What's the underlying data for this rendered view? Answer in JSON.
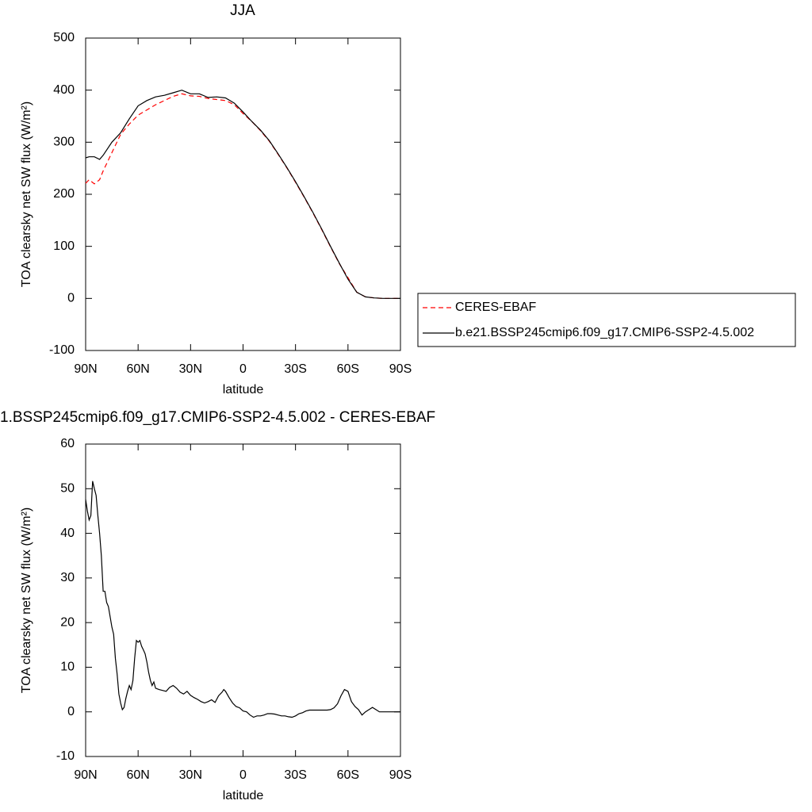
{
  "chart_data": [
    {
      "type": "line",
      "title": "JJA",
      "xlabel": "latitude",
      "ylabel": "TOA clearsky net SW flux (W/m²)",
      "x": [
        90,
        88,
        85,
        82,
        80,
        75,
        70,
        65,
        60,
        55,
        50,
        45,
        40,
        35,
        30,
        25,
        20,
        15,
        10,
        5,
        0,
        -5,
        -10,
        -15,
        -20,
        -25,
        -30,
        -35,
        -40,
        -45,
        -50,
        -55,
        -60,
        -65,
        -70,
        -75,
        -80,
        -85,
        -90
      ],
      "series": [
        {
          "name": "CERES-EBAF",
          "color": "#ff0000",
          "dashed": true,
          "values": [
            221,
            228,
            220,
            228,
            245,
            280,
            315,
            335,
            352,
            362,
            372,
            380,
            388,
            393,
            389,
            388,
            384,
            382,
            380,
            372,
            355,
            340,
            322,
            302,
            277,
            251,
            223,
            194,
            164,
            132,
            99,
            67,
            40,
            12,
            3,
            1,
            0,
            0,
            0
          ]
        },
        {
          "name": "b.e21.BSSP245cmip6.f09_g17.CMIP6-SSP2-4.5.002",
          "color": "#000000",
          "dashed": false,
          "values": [
            270,
            272,
            272,
            267,
            275,
            300,
            318,
            345,
            370,
            380,
            387,
            390,
            395,
            400,
            393,
            393,
            386,
            387,
            385,
            375,
            358,
            340,
            323,
            303,
            278,
            252,
            224,
            195,
            165,
            133,
            100,
            68,
            37,
            12,
            3,
            1,
            0,
            0,
            0
          ]
        }
      ],
      "xlim": [
        90,
        -90
      ],
      "xticks": [
        {
          "value": 90,
          "label": "90N"
        },
        {
          "value": 60,
          "label": "60N"
        },
        {
          "value": 30,
          "label": "30N"
        },
        0,
        {
          "value": -30,
          "label": "30S"
        },
        {
          "value": -60,
          "label": "60S"
        },
        {
          "value": -90,
          "label": "90S"
        }
      ],
      "ylim": [
        -100,
        500
      ],
      "yticks": [
        -100,
        0,
        100,
        200,
        300,
        400,
        500
      ],
      "legend": "right"
    },
    {
      "type": "line",
      "title": "1.BSSP245cmip6.f09_g17.CMIP6-SSP2-4.5.002 - CERES-EBAF",
      "xlabel": "latitude",
      "ylabel": "TOA clearsky net SW flux (W/m²)",
      "x": [
        90,
        89,
        88,
        87,
        86,
        85,
        84,
        83,
        82,
        81,
        80,
        79,
        78,
        77,
        76,
        75,
        74,
        73,
        72,
        71,
        70,
        69,
        68,
        67,
        66,
        65,
        64,
        63,
        62,
        61,
        60,
        59,
        58,
        57,
        56,
        55,
        54,
        53,
        52,
        51,
        50,
        48,
        46,
        44,
        42,
        40,
        38,
        36,
        34,
        32,
        30,
        28,
        26,
        24,
        22,
        20,
        18,
        16,
        14,
        12,
        11,
        10,
        8,
        6,
        4,
        2,
        0,
        -2,
        -4,
        -6,
        -8,
        -10,
        -12,
        -14,
        -16,
        -18,
        -20,
        -22,
        -24,
        -26,
        -28,
        -30,
        -32,
        -34,
        -36,
        -38,
        -40,
        -42,
        -44,
        -46,
        -48,
        -50,
        -52,
        -54,
        -56,
        -58,
        -60,
        -62,
        -64,
        -66,
        -68,
        -70,
        -72,
        -74,
        -76,
        -78,
        -80,
        -85,
        -90
      ],
      "series": [
        {
          "color": "#000000",
          "dashed": false,
          "values": [
            47.6,
            45,
            43,
            44,
            51.7,
            50,
            48.5,
            44,
            40,
            35,
            27,
            27,
            24.5,
            23.6,
            21.3,
            19,
            17.4,
            12,
            8.5,
            4,
            2,
            0.5,
            1,
            3,
            4.6,
            5.9,
            5,
            7,
            12,
            16,
            15.6,
            16,
            14.7,
            13.9,
            13,
            11.2,
            8.9,
            7.1,
            5.9,
            6.7,
            5.3,
            5,
            4.8,
            4.6,
            5.5,
            5.9,
            5.3,
            4.4,
            4,
            4.6,
            3.7,
            3.2,
            2.8,
            2.3,
            2,
            2.3,
            2.7,
            2.1,
            3.6,
            4.4,
            5,
            4.6,
            3.2,
            2,
            1.2,
            0.9,
            0.2,
            0,
            -0.7,
            -1.2,
            -0.9,
            -0.9,
            -0.7,
            -0.4,
            -0.4,
            -0.5,
            -0.7,
            -0.9,
            -0.9,
            -1.1,
            -1.2,
            -0.9,
            -0.4,
            -0.2,
            0.2,
            0.4,
            0.4,
            0.4,
            0.4,
            0.4,
            0.4,
            0.5,
            0.9,
            1.8,
            3.6,
            5,
            4.6,
            2.3,
            1.2,
            0.5,
            -0.7,
            0,
            0.5,
            1,
            0.5,
            0,
            0,
            0,
            0
          ]
        }
      ],
      "xlim": [
        90,
        -90
      ],
      "xticks": [
        {
          "value": 90,
          "label": "90N"
        },
        {
          "value": 60,
          "label": "60N"
        },
        {
          "value": 30,
          "label": "30N"
        },
        0,
        {
          "value": -30,
          "label": "30S"
        },
        {
          "value": -60,
          "label": "60S"
        },
        {
          "value": -90,
          "label": "90S"
        }
      ],
      "ylim": [
        -10,
        60
      ],
      "yticks": [
        -10,
        0,
        10,
        20,
        30,
        40,
        50,
        60
      ]
    }
  ]
}
